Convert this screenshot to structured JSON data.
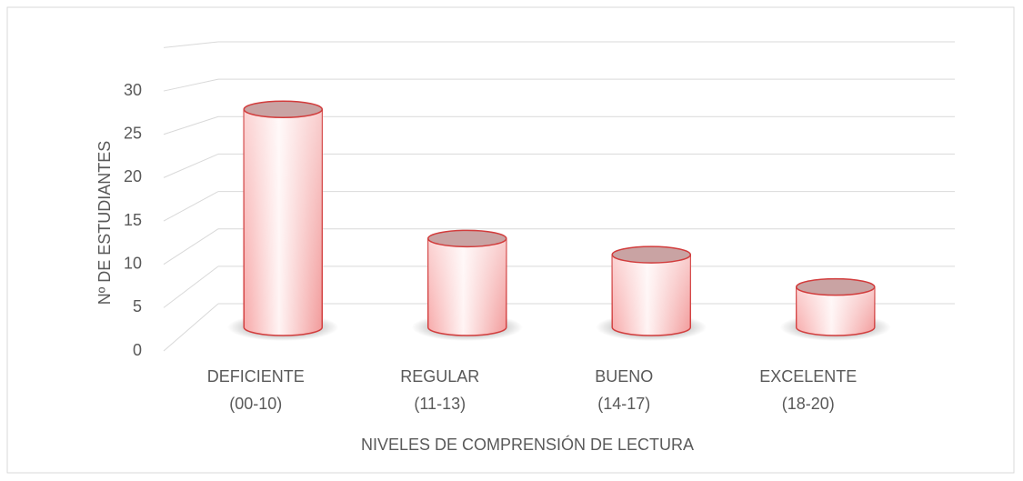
{
  "chart_data": {
    "type": "bar3d",
    "categories": [
      [
        "DEFICIENTE",
        "(00-10)"
      ],
      [
        "REGULAR",
        "(11-13)"
      ],
      [
        "BUENO",
        "(14-17)"
      ],
      [
        "EXCELENTE",
        "(18-20)"
      ]
    ],
    "values": [
      27,
      11,
      9,
      5
    ],
    "color": "#f08080",
    "x_label": "NIVELES DE COMPRENSIÓN  DE LECTURA",
    "y_label": "Nº DE ESTUDIANTES",
    "ylim": [
      0,
      35
    ],
    "yticks": [
      0,
      5,
      10,
      15,
      20,
      25,
      30
    ],
    "grid": true
  }
}
